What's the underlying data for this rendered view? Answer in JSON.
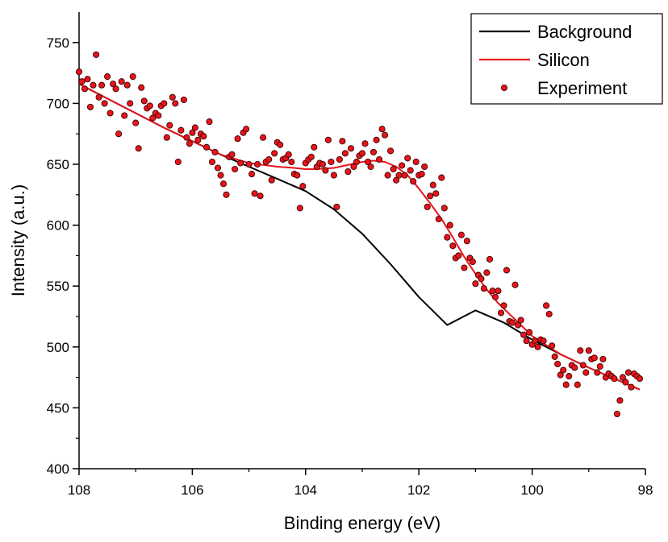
{
  "chart_data": {
    "type": "scatter",
    "xlabel": "Binding energy (eV)",
    "ylabel": "Intensity (a.u.)",
    "xlim": [
      108,
      98
    ],
    "ylim": [
      400,
      775
    ],
    "x_reversed": true,
    "x_ticks": [
      108,
      106,
      104,
      102,
      100,
      98
    ],
    "y_ticks": [
      400,
      450,
      500,
      550,
      600,
      650,
      700,
      750
    ],
    "grid": false,
    "legend_position": "top-right",
    "series": [
      {
        "name": "Background",
        "kind": "line",
        "color": "#000000",
        "x": [
          108.0,
          107.5,
          107.0,
          106.5,
          106.0,
          105.5,
          105.0,
          104.5,
          104.0,
          103.5,
          103.0,
          102.5,
          102.0,
          101.5,
          101.0,
          100.5,
          100.0,
          99.5,
          99.0,
          98.5,
          98.1
        ],
        "y": [
          716,
          704,
          692,
          680,
          669,
          658,
          648,
          638,
          628,
          613,
          593,
          568,
          541,
          518,
          530,
          520,
          506,
          494,
          483,
          473,
          465
        ]
      },
      {
        "name": "Silicon",
        "kind": "line",
        "color": "#e8141b",
        "x": [
          108.0,
          107.5,
          107.0,
          106.5,
          106.0,
          105.5,
          105.0,
          104.5,
          104.2,
          104.0,
          103.8,
          103.5,
          103.2,
          103.0,
          102.8,
          102.6,
          102.4,
          102.2,
          102.0,
          101.8,
          101.6,
          101.4,
          101.2,
          101.0,
          100.8,
          100.6,
          100.4,
          100.2,
          100.0,
          99.5,
          99.0,
          98.5,
          98.1
        ],
        "y": [
          716,
          704,
          692,
          680,
          669,
          658,
          651,
          648,
          647,
          646,
          646,
          647,
          650,
          652,
          653,
          652,
          648,
          641,
          630,
          618,
          605,
          590,
          574,
          560,
          547,
          536,
          527,
          518,
          509,
          494,
          483,
          473,
          465
        ]
      },
      {
        "name": "Experiment",
        "kind": "scatter",
        "color": "#e8141b",
        "x": [
          108.0,
          107.95,
          107.9,
          107.85,
          107.8,
          107.75,
          107.7,
          107.65,
          107.6,
          107.55,
          107.5,
          107.45,
          107.4,
          107.35,
          107.3,
          107.25,
          107.2,
          107.15,
          107.1,
          107.05,
          107.0,
          106.95,
          106.9,
          106.85,
          106.8,
          106.75,
          106.7,
          106.65,
          106.6,
          106.55,
          106.5,
          106.45,
          106.4,
          106.35,
          106.3,
          106.25,
          106.2,
          106.15,
          106.1,
          106.05,
          106.0,
          105.95,
          105.9,
          105.85,
          105.8,
          105.75,
          105.7,
          105.65,
          105.6,
          105.55,
          105.5,
          105.45,
          105.4,
          105.35,
          105.3,
          105.25,
          105.2,
          105.15,
          105.1,
          105.05,
          105.0,
          104.95,
          104.9,
          104.85,
          104.8,
          104.75,
          104.7,
          104.65,
          104.6,
          104.55,
          104.5,
          104.45,
          104.4,
          104.35,
          104.3,
          104.25,
          104.2,
          104.15,
          104.1,
          104.05,
          104.0,
          103.95,
          103.9,
          103.85,
          103.8,
          103.75,
          103.7,
          103.65,
          103.6,
          103.55,
          103.5,
          103.45,
          103.4,
          103.35,
          103.3,
          103.25,
          103.2,
          103.15,
          103.1,
          103.05,
          103.0,
          102.95,
          102.9,
          102.85,
          102.8,
          102.75,
          102.7,
          102.65,
          102.6,
          102.55,
          102.5,
          102.45,
          102.4,
          102.35,
          102.3,
          102.25,
          102.2,
          102.15,
          102.1,
          102.05,
          102.0,
          101.95,
          101.9,
          101.85,
          101.8,
          101.75,
          101.7,
          101.65,
          101.6,
          101.55,
          101.5,
          101.45,
          101.4,
          101.35,
          101.3,
          101.25,
          101.2,
          101.15,
          101.1,
          101.05,
          101.0,
          100.95,
          100.9,
          100.85,
          100.8,
          100.75,
          100.7,
          100.65,
          100.6,
          100.55,
          100.5,
          100.45,
          100.4,
          100.35,
          100.3,
          100.25,
          100.2,
          100.15,
          100.1,
          100.05,
          100.0,
          99.95,
          99.9,
          99.85,
          99.8,
          99.75,
          99.7,
          99.65,
          99.6,
          99.55,
          99.5,
          99.45,
          99.4,
          99.35,
          99.3,
          99.25,
          99.2,
          99.15,
          99.1,
          99.05,
          99.0,
          98.95,
          98.9,
          98.85,
          98.8,
          98.75,
          98.7,
          98.65,
          98.6,
          98.55,
          98.5,
          98.45,
          98.4,
          98.35,
          98.3,
          98.25,
          98.2,
          98.15,
          98.1
        ],
        "y": [
          726,
          718,
          712,
          720,
          697,
          715,
          740,
          705,
          715,
          700,
          722,
          692,
          716,
          712,
          675,
          718,
          690,
          715,
          700,
          722,
          684,
          663,
          713,
          702,
          696,
          698,
          688,
          692,
          690,
          698,
          700,
          672,
          682,
          705,
          700,
          652,
          678,
          703,
          672,
          667,
          676,
          680,
          670,
          675,
          673,
          664,
          685,
          652,
          660,
          647,
          641,
          634,
          625,
          656,
          658,
          646,
          671,
          651,
          676,
          679,
          650,
          642,
          626,
          650,
          624,
          672,
          652,
          654,
          637,
          659,
          668,
          666,
          654,
          655,
          658,
          652,
          642,
          641,
          614,
          632,
          651,
          654,
          656,
          664,
          648,
          651,
          650,
          645,
          670,
          652,
          641,
          615,
          654,
          669,
          659,
          644,
          663,
          648,
          652,
          657,
          659,
          667,
          652,
          648,
          660,
          670,
          654,
          679,
          674,
          641,
          661,
          646,
          637,
          641,
          649,
          641,
          655,
          645,
          636,
          652,
          641,
          642,
          648,
          615,
          624,
          633,
          626,
          605,
          639,
          614,
          590,
          600,
          583,
          573,
          575,
          592,
          565,
          587,
          573,
          570,
          552,
          559,
          556,
          548,
          561,
          572,
          546,
          541,
          546,
          528,
          534,
          563,
          521,
          520,
          551,
          518,
          522,
          510,
          505,
          512,
          502,
          505,
          500,
          506,
          505,
          534,
          527,
          501,
          492,
          486,
          477,
          481,
          469,
          476,
          485,
          483,
          469,
          497,
          485,
          479,
          497,
          490,
          491,
          479,
          484,
          490,
          475,
          478,
          476,
          474,
          445,
          456,
          475,
          471,
          479,
          467,
          478,
          476,
          474
        ]
      }
    ]
  }
}
